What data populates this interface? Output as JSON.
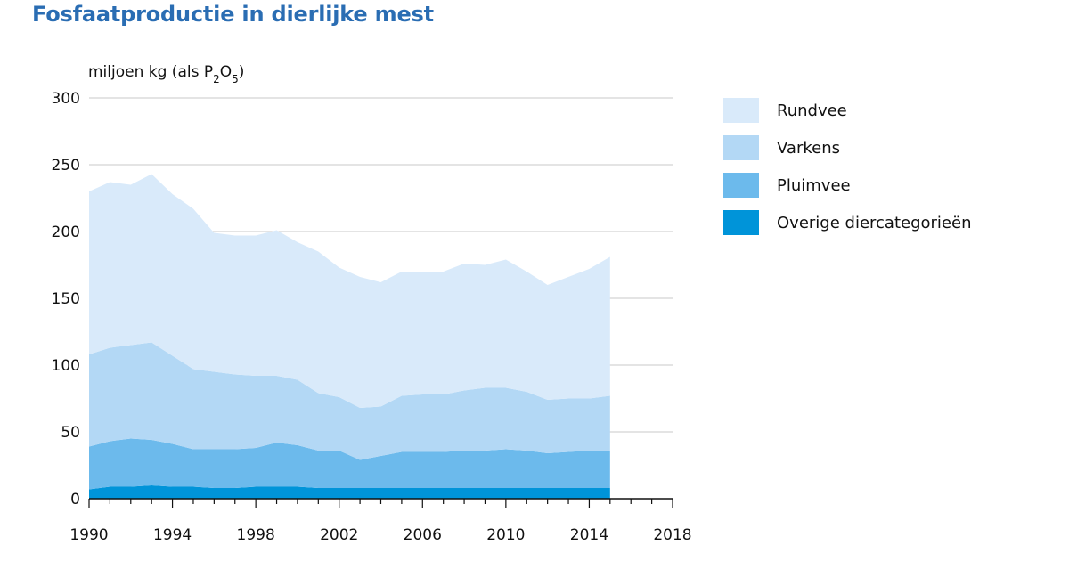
{
  "chart_data": {
    "type": "area",
    "stacked": true,
    "title": "Fosfaatproductie in dierlijke mest",
    "ylabel": "miljoen kg (als P2O5)",
    "ylabel_parts": {
      "main": "miljoen kg (als P",
      "sub1": "2",
      "mid": "O",
      "sub2": "5",
      "end": ")"
    },
    "xlabel": "",
    "xlim": [
      1990,
      2018
    ],
    "ylim": [
      0,
      300
    ],
    "x_ticks": [
      1990,
      1994,
      1998,
      2002,
      2006,
      2010,
      2014,
      2018
    ],
    "y_ticks": [
      0,
      50,
      100,
      150,
      200,
      250,
      300
    ],
    "grid": true,
    "legend_position": "right",
    "x": [
      1990,
      1991,
      1992,
      1993,
      1994,
      1995,
      1996,
      1997,
      1998,
      1999,
      2000,
      2001,
      2002,
      2003,
      2004,
      2005,
      2006,
      2007,
      2008,
      2009,
      2010,
      2011,
      2012,
      2013,
      2014,
      2015
    ],
    "series": [
      {
        "name": "Overige diercategorieën",
        "color": "#0094d9",
        "values": [
          7,
          9,
          9,
          10,
          9,
          9,
          8,
          8,
          9,
          9,
          9,
          8,
          8,
          8,
          8,
          8,
          8,
          8,
          8,
          8,
          8,
          8,
          8,
          8,
          8,
          8
        ]
      },
      {
        "name": "Pluimvee",
        "color": "#6cbaec",
        "values": [
          32,
          34,
          36,
          34,
          32,
          28,
          29,
          29,
          29,
          33,
          31,
          28,
          28,
          21,
          24,
          27,
          27,
          27,
          28,
          28,
          29,
          28,
          26,
          27,
          28,
          28
        ]
      },
      {
        "name": "Varkens",
        "color": "#b3d8f5",
        "values": [
          69,
          70,
          70,
          73,
          66,
          60,
          58,
          56,
          54,
          50,
          49,
          43,
          40,
          39,
          37,
          42,
          43,
          43,
          45,
          47,
          46,
          44,
          40,
          40,
          39,
          41
        ]
      },
      {
        "name": "Rundvee",
        "color": "#d9eafa",
        "values": [
          122,
          124,
          120,
          126,
          121,
          120,
          104,
          104,
          105,
          109,
          103,
          106,
          97,
          98,
          93,
          93,
          92,
          92,
          95,
          92,
          96,
          90,
          86,
          91,
          97,
          104
        ]
      }
    ],
    "legend_order": [
      "Rundvee",
      "Varkens",
      "Pluimvee",
      "Overige diercategorieën"
    ]
  }
}
